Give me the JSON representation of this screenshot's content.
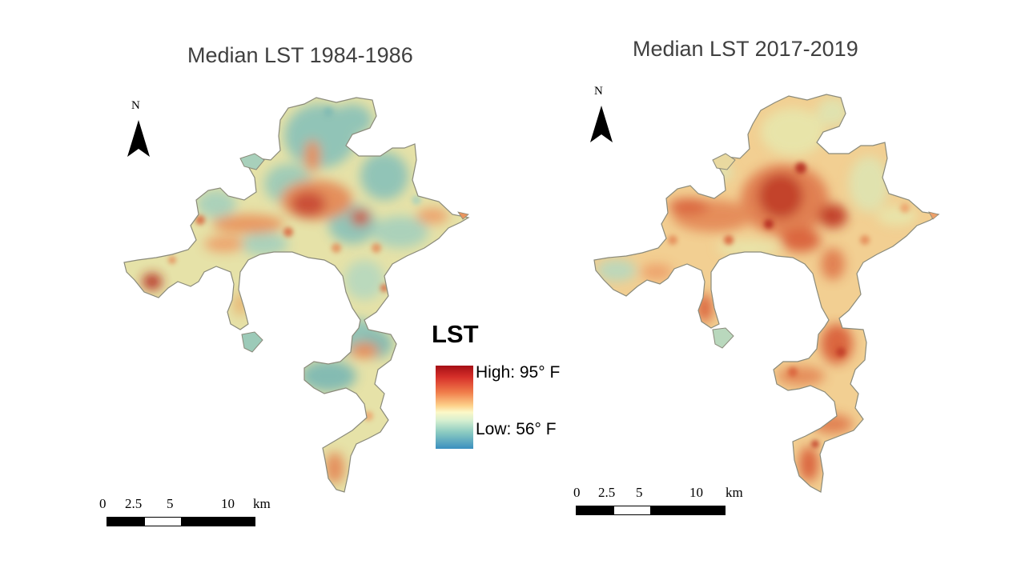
{
  "maps": {
    "left": {
      "title": "Median LST 1984-1986",
      "north_label": "N",
      "scale_ticks": [
        "0",
        "2.5",
        "5",
        "10"
      ],
      "scale_unit": "km"
    },
    "right": {
      "title": "Median LST 2017-2019",
      "north_label": "N",
      "scale_ticks": [
        "0",
        "2.5",
        "5",
        "10"
      ],
      "scale_unit": "km"
    }
  },
  "legend": {
    "title": "LST",
    "high_label": "High: 95° F",
    "low_label": "Low: 56° F",
    "high_color": "#a50f15",
    "mid_color": "#fcf8c8",
    "low_color": "#3a8fbf"
  },
  "colors": {
    "outline": "#8a8a7a",
    "cool": "#7fb9b3",
    "mild": "#e9e3a6",
    "warm": "#f0b27a",
    "hot": "#d9603b",
    "hottest": "#b2261f"
  }
}
